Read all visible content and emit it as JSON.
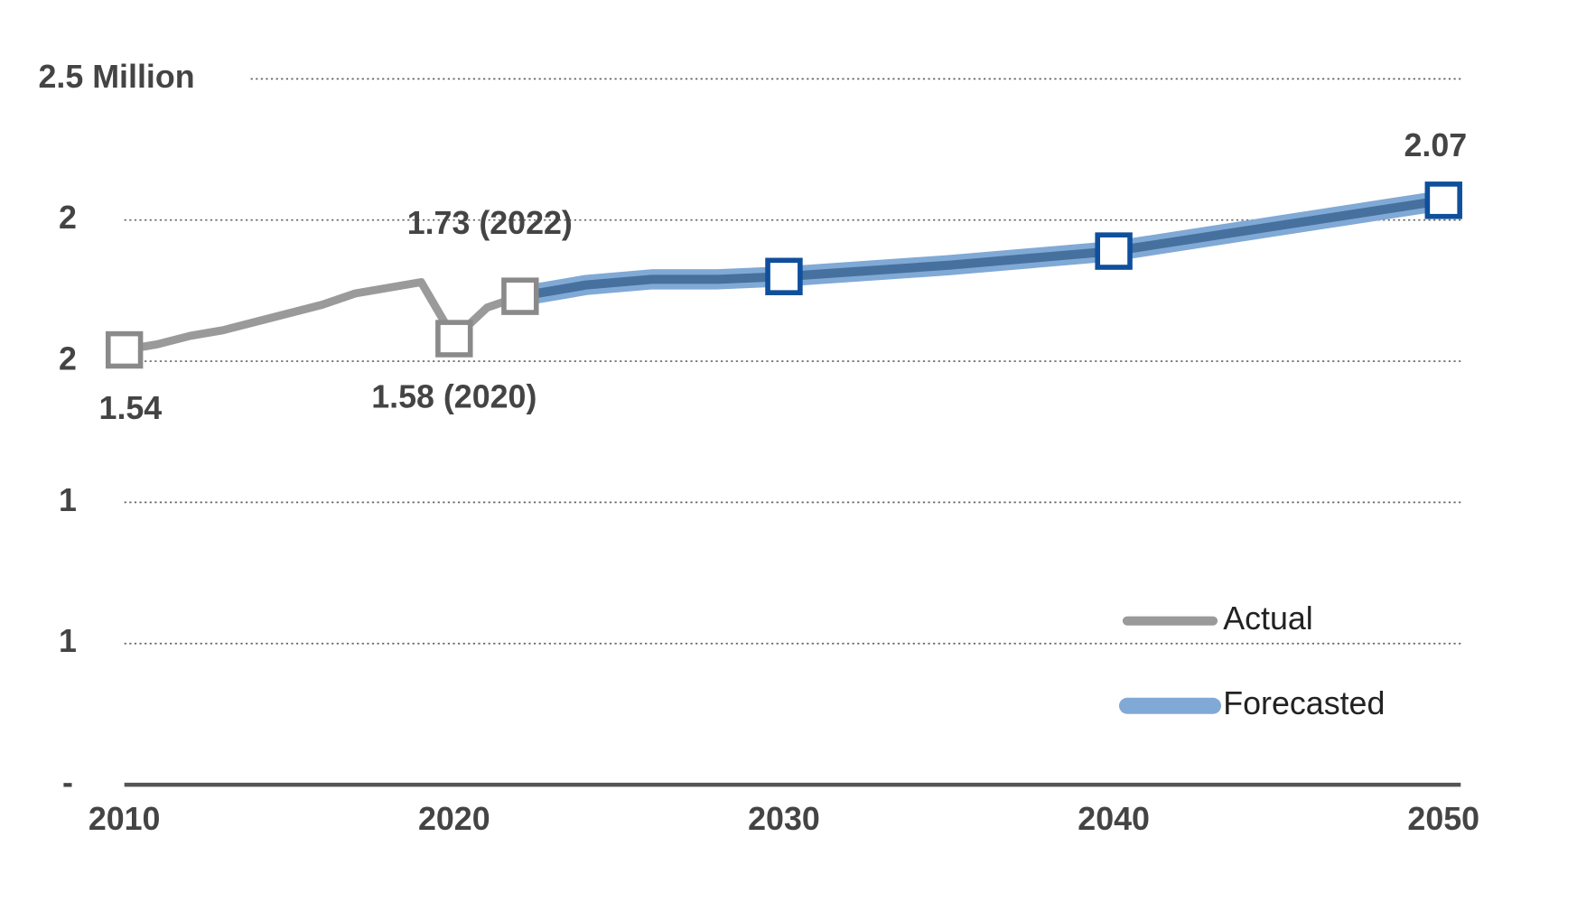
{
  "chart_data": {
    "type": "line",
    "xlim": [
      2010,
      2050
    ],
    "xticks": [
      2010,
      2020,
      2030,
      2040,
      2050
    ],
    "ylim": [
      0,
      2.5
    ],
    "yticks": [
      {
        "value": 0,
        "label": "-"
      },
      {
        "value": 0.5,
        "label": "1"
      },
      {
        "value": 1,
        "label": "1"
      },
      {
        "value": 1.5,
        "label": "2"
      },
      {
        "value": 2,
        "label": "2"
      },
      {
        "value": 2.5,
        "label": "2.5 Million"
      }
    ],
    "grid": true,
    "legend": "lower right",
    "series": [
      {
        "name": "Actual",
        "color": "#9a9a9a",
        "x": [
          2010,
          2011,
          2012,
          2013,
          2014,
          2015,
          2016,
          2017,
          2018,
          2019,
          2020,
          2021,
          2022
        ],
        "values": [
          1.54,
          1.56,
          1.59,
          1.61,
          1.64,
          1.67,
          1.7,
          1.74,
          1.76,
          1.78,
          1.58,
          1.69,
          1.73
        ],
        "value_labels": [
          "1.54",
          null,
          null,
          null,
          null,
          null,
          null,
          null,
          null,
          null,
          "1.58 (2020)",
          null,
          "1.73 (2022)"
        ],
        "markers": [
          2010,
          2020,
          2022
        ],
        "marker_color": "#8a8a8a"
      },
      {
        "name": "Forecasted",
        "color": "#80a9d6",
        "x": [
          2022,
          2024,
          2026,
          2028,
          2030,
          2035,
          2040,
          2045,
          2050
        ],
        "values": [
          1.73,
          1.77,
          1.79,
          1.79,
          1.8,
          1.84,
          1.89,
          1.98,
          2.07
        ],
        "value_labels": [
          null,
          null,
          null,
          null,
          null,
          null,
          null,
          null,
          "2.07"
        ],
        "markers": [
          2030,
          2040,
          2050
        ],
        "marker_color": "#0f4f9c",
        "inner_color": "#46709e"
      }
    ]
  }
}
